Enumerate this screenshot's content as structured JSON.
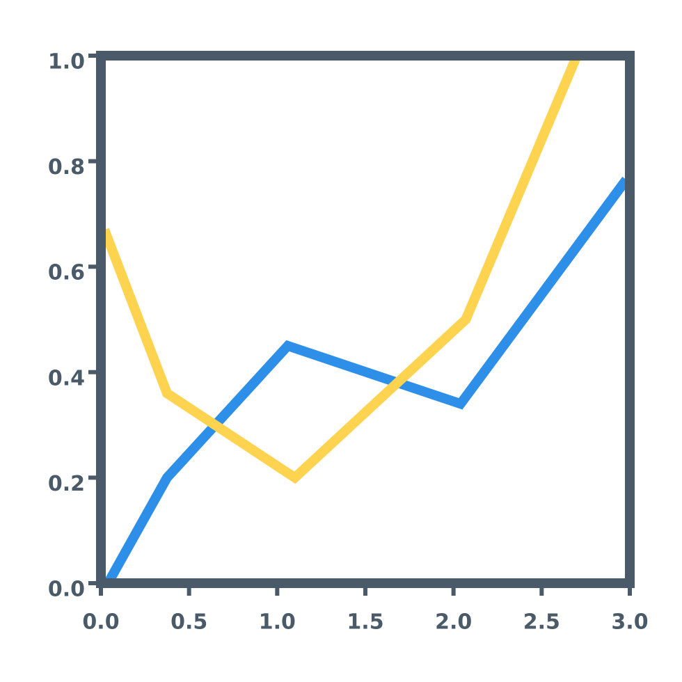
{
  "chart_data": {
    "type": "line",
    "series": [
      {
        "color": "#2e8fe8",
        "x": [
          0.04,
          0.375,
          1.06,
          2.04,
          2.98
        ],
        "values": [
          0,
          0.2,
          0.45,
          0.34,
          0.765
        ]
      },
      {
        "color": "#fdd350",
        "x": [
          0.02,
          0.375,
          1.1,
          2.07,
          2.7
        ],
        "values": [
          0.67,
          0.36,
          0.2,
          0.5,
          1.0
        ]
      }
    ],
    "xlim": [
      0,
      3.0
    ],
    "ylim": [
      0,
      1.0
    ],
    "xticks": [
      {
        "value": 0,
        "label": "0.0"
      },
      0.5,
      {
        "value": 1,
        "label": "1.0"
      },
      1.5,
      {
        "value": 2,
        "label": "2.0"
      },
      2.5,
      {
        "value": 3,
        "label": "3.0"
      }
    ],
    "yticks": [
      {
        "value": 0,
        "label": "0.0"
      },
      0.2,
      0.4,
      0.6,
      0.8,
      {
        "value": 1,
        "label": "1.0"
      }
    ],
    "grid": false,
    "axis_color": "#4a5a68"
  }
}
